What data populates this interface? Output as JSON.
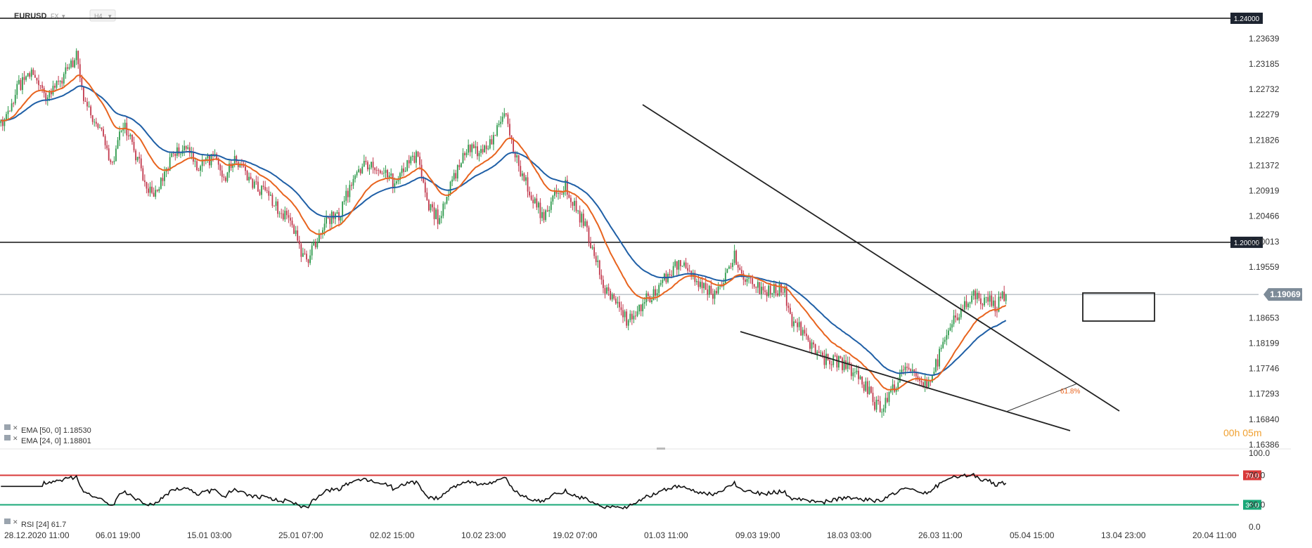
{
  "header": {
    "symbol": "EURUSD",
    "market": "FX",
    "timeframe": "H4"
  },
  "colors": {
    "bull": "#2e9a4c",
    "bear": "#c23a4e",
    "ema50": "#1f5fa6",
    "ema24": "#e8641f",
    "rsi_line": "#111111",
    "rsi_upper": "#d93a3a",
    "rsi_lower": "#1aa878",
    "level_badge": "#1d2430",
    "price_badge": "#7d8b98",
    "timer": "#f0a030",
    "fib_label": "#e8641f"
  },
  "legend": {
    "ema50": "EMA [50, 0] 1.18530",
    "ema24": "EMA [24, 0] 1.18801",
    "rsi": "RSI [24] 61.7"
  },
  "timer": "00h 05m",
  "chart_data": {
    "type": "candlestick",
    "price_axis": {
      "ylim": [
        1.16386,
        1.24
      ],
      "ticks": [
        "1.23639",
        "1.23185",
        "1.22732",
        "1.22279",
        "1.21826",
        "1.21372",
        "1.20919",
        "1.20466",
        "1.20013",
        "1.19559",
        "1.18653",
        "1.18199",
        "1.17746",
        "1.17293",
        "1.16840",
        "1.16386"
      ]
    },
    "rsi_axis": {
      "ylim": [
        0,
        100
      ],
      "ticks": [
        "100.0",
        "70.0",
        "30.0",
        "0.0"
      ]
    },
    "x_labels": [
      "28.12.2020 11:00",
      "06.01 19:00",
      "15.01 03:00",
      "25.01 07:00",
      "02.02 15:00",
      "10.02 23:00",
      "19.02 07:00",
      "01.03 11:00",
      "09.03 19:00",
      "18.03 03:00",
      "26.03 11:00",
      "05.04 15:00",
      "13.04 23:00",
      "20.04 11:00"
    ],
    "key_levels": [
      {
        "value": 1.24,
        "label": "1.24000"
      },
      {
        "value": 1.2,
        "label": "1.20000"
      }
    ],
    "current_price": {
      "value": 1.19069,
      "label": "1.19069"
    },
    "rsi_levels": [
      {
        "value": 70,
        "label": "70.0"
      },
      {
        "value": 30,
        "label": "30.0"
      }
    ],
    "fib_label": "61.8%",
    "anchors": [
      [
        0,
        1.221
      ],
      [
        10,
        1.228
      ],
      [
        18,
        1.2305
      ],
      [
        25,
        1.226
      ],
      [
        33,
        1.229
      ],
      [
        42,
        1.233
      ],
      [
        46,
        1.226
      ],
      [
        55,
        1.22
      ],
      [
        62,
        1.214
      ],
      [
        68,
        1.2215
      ],
      [
        78,
        1.213
      ],
      [
        84,
        1.208
      ],
      [
        92,
        1.213
      ],
      [
        98,
        1.2165
      ],
      [
        104,
        1.2175
      ],
      [
        110,
        1.213
      ],
      [
        118,
        1.2155
      ],
      [
        124,
        1.2115
      ],
      [
        130,
        1.215
      ],
      [
        136,
        1.212
      ],
      [
        142,
        1.21
      ],
      [
        152,
        1.207
      ],
      [
        160,
        1.204
      ],
      [
        164,
        1.201
      ],
      [
        170,
        1.196
      ],
      [
        176,
        1.201
      ],
      [
        182,
        1.204
      ],
      [
        188,
        1.205
      ],
      [
        196,
        1.211
      ],
      [
        202,
        1.214
      ],
      [
        210,
        1.213
      ],
      [
        218,
        1.211
      ],
      [
        226,
        1.214
      ],
      [
        232,
        1.216
      ],
      [
        238,
        1.206
      ],
      [
        244,
        1.204
      ],
      [
        250,
        1.21
      ],
      [
        256,
        1.215
      ],
      [
        262,
        1.217
      ],
      [
        268,
        1.216
      ],
      [
        274,
        1.219
      ],
      [
        280,
        1.224
      ],
      [
        284,
        1.218
      ],
      [
        290,
        1.212
      ],
      [
        296,
        1.208
      ],
      [
        302,
        1.204
      ],
      [
        308,
        1.2085
      ],
      [
        314,
        1.21
      ],
      [
        320,
        1.206
      ],
      [
        326,
        1.202
      ],
      [
        332,
        1.196
      ],
      [
        336,
        1.192
      ],
      [
        342,
        1.189
      ],
      [
        348,
        1.186
      ],
      [
        354,
        1.188
      ],
      [
        360,
        1.19
      ],
      [
        366,
        1.192
      ],
      [
        372,
        1.195
      ],
      [
        378,
        1.196
      ],
      [
        384,
        1.194
      ],
      [
        392,
        1.192
      ],
      [
        398,
        1.1905
      ],
      [
        404,
        1.195
      ],
      [
        408,
        1.198
      ],
      [
        412,
        1.194
      ],
      [
        418,
        1.193
      ],
      [
        424,
        1.191
      ],
      [
        430,
        1.192
      ],
      [
        436,
        1.191
      ],
      [
        440,
        1.186
      ],
      [
        446,
        1.184
      ],
      [
        452,
        1.181
      ],
      [
        458,
        1.179
      ],
      [
        464,
        1.179
      ],
      [
        470,
        1.178
      ],
      [
        476,
        1.176
      ],
      [
        482,
        1.174
      ],
      [
        486,
        1.171
      ],
      [
        490,
        1.17
      ],
      [
        496,
        1.174
      ],
      [
        502,
        1.177
      ],
      [
        508,
        1.177
      ],
      [
        514,
        1.175
      ],
      [
        518,
        1.176
      ],
      [
        522,
        1.18
      ],
      [
        526,
        1.184
      ],
      [
        530,
        1.186
      ],
      [
        534,
        1.188
      ],
      [
        538,
        1.189
      ],
      [
        542,
        1.191
      ],
      [
        546,
        1.189
      ],
      [
        550,
        1.1895
      ],
      [
        554,
        1.1885
      ],
      [
        557,
        1.1907
      ]
    ]
  }
}
